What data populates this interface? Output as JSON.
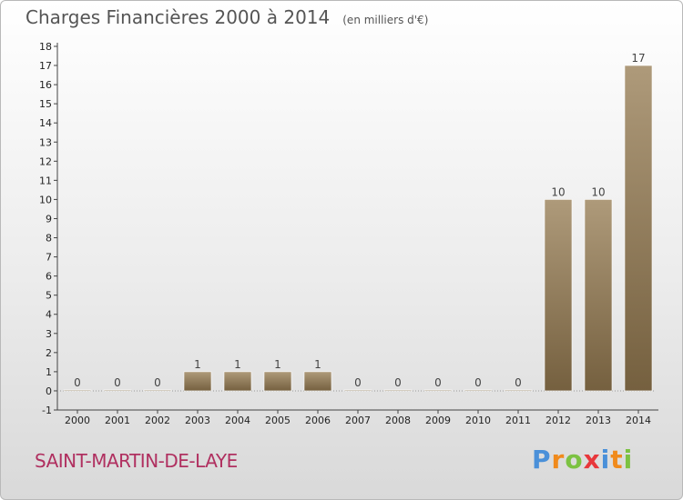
{
  "title": "Charges Financières 2000 à 2014",
  "unit": "(en milliers d'€)",
  "commune": "SAINT-MARTIN-DE-LAYE",
  "brand": {
    "letters": [
      "P",
      "r",
      "o",
      "x",
      "i",
      "t",
      "i"
    ],
    "colors": [
      "#4a90d9",
      "#f08a1c",
      "#7cc242",
      "#e8373b",
      "#4a90d9",
      "#f08a1c",
      "#7cc242"
    ]
  },
  "colors": {
    "bar_top": "#ae9a7a",
    "bar_bottom": "#75603f",
    "axis": "#444444",
    "grid_text": "#222222"
  },
  "chart_data": {
    "type": "bar",
    "categories": [
      "2000",
      "2001",
      "2002",
      "2003",
      "2004",
      "2005",
      "2006",
      "2007",
      "2008",
      "2009",
      "2010",
      "2011",
      "2012",
      "2013",
      "2014"
    ],
    "values": [
      0,
      0,
      0,
      1,
      1,
      1,
      1,
      0,
      0,
      0,
      0,
      0,
      10,
      10,
      17
    ],
    "data_labels": [
      "0",
      "0",
      "0",
      "1",
      "1",
      "1",
      "1",
      "0",
      "0",
      "0",
      "0",
      "0",
      "10",
      "10",
      "17"
    ],
    "y_ticks": [
      -1,
      0,
      1,
      2,
      3,
      4,
      5,
      6,
      7,
      8,
      9,
      10,
      11,
      12,
      13,
      14,
      15,
      16,
      17,
      18
    ],
    "ylim": [
      -1,
      18
    ],
    "title": "Charges Financières 2000 à 2014",
    "xlabel": "",
    "ylabel": "",
    "grid": false
  }
}
